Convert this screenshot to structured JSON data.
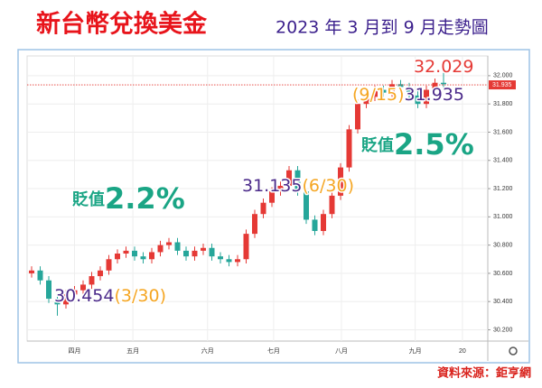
{
  "chart_data": {
    "type": "candlestick",
    "title": "新台幣兌換美金",
    "subtitle": "2023 年 3 月到 9 月走勢圖",
    "source": "資料來源：鉅亨網",
    "categories": [
      null,
      null,
      null,
      null,
      null,
      null,
      null,
      null,
      null,
      null,
      null,
      null,
      null,
      null,
      null,
      null,
      null,
      null,
      null,
      null,
      null,
      null,
      null,
      null,
      null,
      null,
      null,
      null,
      null,
      null,
      null,
      null,
      null,
      null,
      null,
      null,
      null,
      null,
      null,
      null,
      null,
      null,
      null,
      null,
      null,
      null,
      null,
      null,
      null
    ],
    "open": [
      30.6,
      30.62,
      30.55,
      30.42,
      30.38,
      30.45,
      30.48,
      30.52,
      30.58,
      30.62,
      30.7,
      30.74,
      30.76,
      30.72,
      30.7,
      30.75,
      30.8,
      30.82,
      30.76,
      30.72,
      30.76,
      30.78,
      30.72,
      30.7,
      30.68,
      30.7,
      30.88,
      31.02,
      31.1,
      31.18,
      31.22,
      31.33,
      31.18,
      30.98,
      30.9,
      31.02,
      31.15,
      31.35,
      31.62,
      31.8,
      31.85,
      31.9,
      31.88,
      31.94,
      31.92,
      31.86,
      31.8,
      31.9,
      31.95
    ],
    "high": [
      30.65,
      30.65,
      30.58,
      30.45,
      30.48,
      30.51,
      30.55,
      30.61,
      30.65,
      30.73,
      30.77,
      30.79,
      30.79,
      30.75,
      30.78,
      30.83,
      30.85,
      30.85,
      30.79,
      30.79,
      30.81,
      30.81,
      30.75,
      30.73,
      30.73,
      30.91,
      31.05,
      31.13,
      31.21,
      31.25,
      31.36,
      31.36,
      31.21,
      31.01,
      31.05,
      31.18,
      31.38,
      31.65,
      31.83,
      31.88,
      31.93,
      31.93,
      31.97,
      31.97,
      31.95,
      31.89,
      31.93,
      31.98,
      32.03
    ],
    "low": [
      30.57,
      30.52,
      30.39,
      30.3,
      30.35,
      30.42,
      30.45,
      30.49,
      30.55,
      30.59,
      30.67,
      30.71,
      30.69,
      30.67,
      30.67,
      30.72,
      30.77,
      30.73,
      30.69,
      30.69,
      30.73,
      30.69,
      30.67,
      30.65,
      30.65,
      30.67,
      30.85,
      30.99,
      31.07,
      31.15,
      31.19,
      31.15,
      30.95,
      30.87,
      30.87,
      30.99,
      31.12,
      31.32,
      31.59,
      31.77,
      31.82,
      31.85,
      31.85,
      31.89,
      31.83,
      31.77,
      31.77,
      31.87,
      31.91
    ],
    "close": [
      30.62,
      30.55,
      30.42,
      30.38,
      30.45,
      30.48,
      30.52,
      30.58,
      30.62,
      30.7,
      30.74,
      30.76,
      30.72,
      30.7,
      30.75,
      30.8,
      30.82,
      30.76,
      30.72,
      30.76,
      30.78,
      30.72,
      30.7,
      30.68,
      30.7,
      30.88,
      31.02,
      31.1,
      31.18,
      31.22,
      31.33,
      31.18,
      30.98,
      30.9,
      31.02,
      31.15,
      31.35,
      31.62,
      31.8,
      31.85,
      31.9,
      31.88,
      31.94,
      31.92,
      31.86,
      31.8,
      31.9,
      31.95,
      31.94
    ],
    "up_color": "#e53935",
    "down_color": "#26a69a",
    "ylim": [
      30.12,
      32.14
    ],
    "yticks": [
      {
        "value": 30.2,
        "label": "30.200"
      },
      {
        "value": 30.4,
        "label": "30.400"
      },
      {
        "value": 30.6,
        "label": "30.600"
      },
      {
        "value": 30.8,
        "label": "30.800"
      },
      {
        "value": 31,
        "label": "31.000"
      },
      {
        "value": 31.2,
        "label": "31.200"
      },
      {
        "value": 31.4,
        "label": "31.400"
      },
      {
        "value": 31.6,
        "label": "31.600"
      },
      {
        "value": 31.8,
        "label": "31.800"
      },
      {
        "value": 32,
        "label": "32.000"
      }
    ],
    "xticks": [
      {
        "value": 5,
        "label": "四月"
      },
      {
        "value": 11.8,
        "label": "五月"
      },
      {
        "value": 20.5,
        "label": "六月"
      },
      {
        "value": 28.2,
        "label": "七月"
      },
      {
        "value": 36.1,
        "label": "八月"
      },
      {
        "value": 44.7,
        "label": "九月"
      },
      {
        "value": 50.2,
        "label": "20"
      }
    ],
    "grid": true,
    "last_price": 31.935,
    "annotations": [
      {
        "parts": [
          "32.029"
        ]
      },
      {
        "parts": [
          "(9/15)",
          "31.935"
        ]
      },
      {
        "parts": [
          "貶值",
          "2.5%"
        ]
      },
      {
        "parts": [
          "31.135",
          "(6/30)"
        ]
      },
      {
        "parts": [
          "貶值",
          "2.2%"
        ]
      },
      {
        "parts": [
          "30.454",
          "(3/30)"
        ]
      }
    ]
  }
}
